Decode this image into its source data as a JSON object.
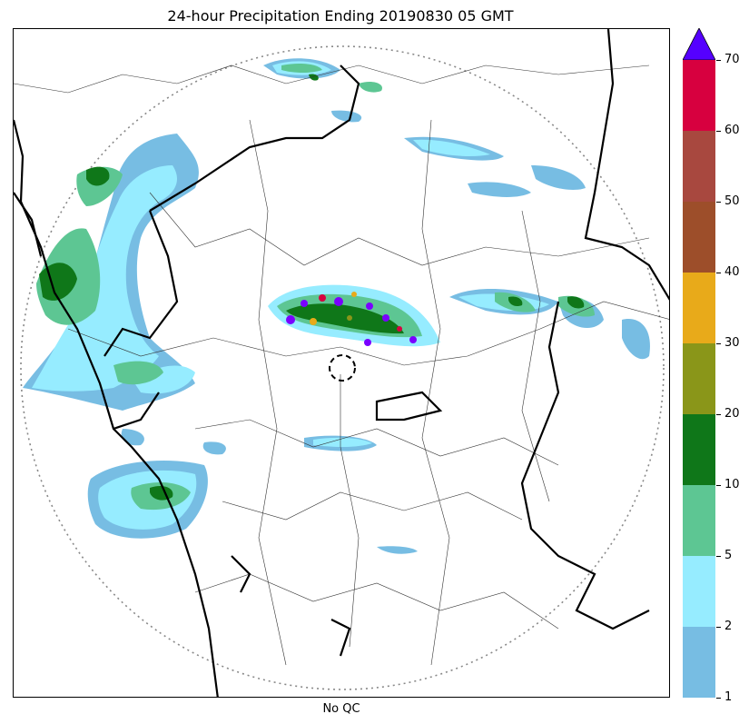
{
  "title": "24-hour Precipitation Ending 20190830 05 GMT",
  "xlabel": "No QC",
  "colorbar": {
    "levels": [
      "1",
      "2",
      "5",
      "10",
      "20",
      "30",
      "40",
      "50",
      "60",
      "70"
    ],
    "colors": [
      "#77bde3",
      "#96ecff",
      "#5dc693",
      "#0f7719",
      "#8a9619",
      "#e8aa1a",
      "#9d4e2a",
      "#a8483f",
      "#d7003f"
    ],
    "extend_color": "#5500ff"
  },
  "legend_icons": [
    "extend-max-triangle-icon"
  ]
}
